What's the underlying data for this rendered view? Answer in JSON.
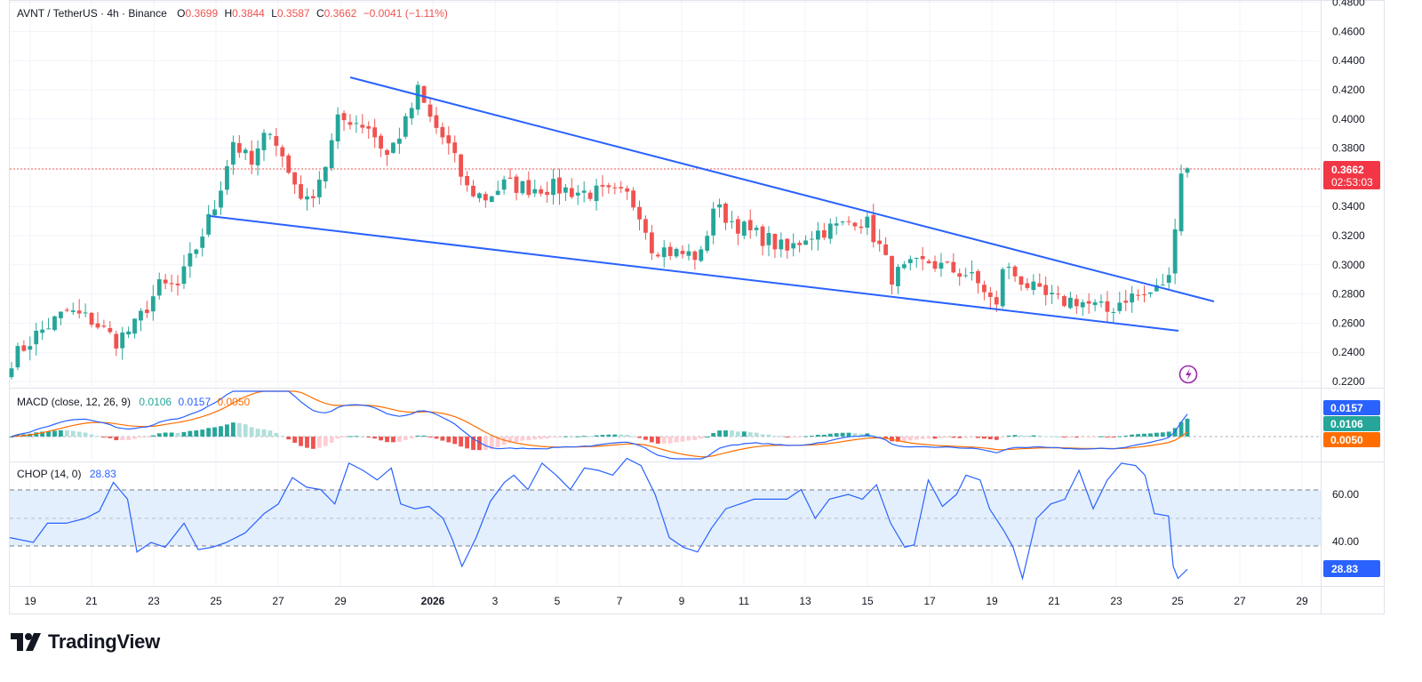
{
  "header": {
    "symbol": "AVNT / TetherUS · 4h · Binance",
    "o_label": "O",
    "o_value": "0.3699",
    "h_label": "H",
    "h_value": "0.3844",
    "l_label": "L",
    "l_value": "0.3587",
    "c_label": "C",
    "c_value": "0.3662",
    "change": "−0.0041 (−1.11%)"
  },
  "price_badge": {
    "price": "0.3662",
    "countdown": "02:53:03"
  },
  "macd": {
    "label": "MACD (close, 12, 26, 9)",
    "hist_value": "0.0106",
    "macd_value": "0.0157",
    "signal_value": "0.0050",
    "badges": [
      "0.0157",
      "0.0106",
      "0.0050"
    ]
  },
  "chop": {
    "label": "CHOP (14, 0)",
    "value": "28.83",
    "axis_labels": [
      "60.00",
      "40.00"
    ],
    "badge": "28.83"
  },
  "brand": {
    "name": "TradingView"
  },
  "colors": {
    "up": "#26a69a",
    "down": "#ef5350",
    "trend": "#2962ff",
    "macd": "#2962ff",
    "signal": "#ff6d00",
    "chop": "#2962ff",
    "chop_band": "#e3effd",
    "accent_bolt": "#9c27b0"
  },
  "icons": {
    "flash": "lightning-icon",
    "logo": "tradingview-logo-icon"
  },
  "chart_data": {
    "type": "candlestick",
    "price_axis": {
      "ticks": [
        "0.4800",
        "0.4600",
        "0.4400",
        "0.4200",
        "0.4000",
        "0.3800",
        "0.3400",
        "0.3200",
        "0.3000",
        "0.2800",
        "0.2600",
        "0.2400",
        "0.2200"
      ],
      "range": [
        0.22,
        0.48
      ]
    },
    "x_axis": {
      "ticks": [
        "19",
        "21",
        "23",
        "25",
        "27",
        "29",
        "2026",
        "3",
        "5",
        "7",
        "9",
        "11",
        "13",
        "15",
        "17",
        "19",
        "21",
        "23",
        "25",
        "27",
        "29"
      ],
      "unit": "day",
      "bold": "2026"
    },
    "last_price": 0.3662,
    "trendlines": [
      {
        "name": "upper",
        "start": [
          "Dec 30",
          0.429
        ],
        "end": [
          "Jan 26",
          0.2755
        ]
      },
      {
        "name": "lower",
        "start": [
          "Dec 25",
          0.3335
        ],
        "end": [
          "Jan 25",
          0.2555
        ]
      }
    ],
    "close_path": [
      [
        0,
        0.235
      ],
      [
        4,
        0.252
      ],
      [
        9,
        0.268
      ],
      [
        13,
        0.262
      ],
      [
        17,
        0.248
      ],
      [
        20,
        0.258
      ],
      [
        24,
        0.285
      ],
      [
        27,
        0.285
      ],
      [
        30,
        0.312
      ],
      [
        33,
        0.34
      ],
      [
        36,
        0.385
      ],
      [
        39,
        0.368
      ],
      [
        42,
        0.395
      ],
      [
        45,
        0.363
      ],
      [
        48,
        0.342
      ],
      [
        51,
        0.369
      ],
      [
        53,
        0.398
      ],
      [
        55,
        0.4
      ],
      [
        58,
        0.395
      ],
      [
        61,
        0.375
      ],
      [
        64,
        0.397
      ],
      [
        66,
        0.419
      ],
      [
        68,
        0.4
      ],
      [
        71,
        0.381
      ],
      [
        74,
        0.352
      ],
      [
        77,
        0.346
      ],
      [
        80,
        0.355
      ],
      [
        84,
        0.353
      ],
      [
        88,
        0.353
      ],
      [
        92,
        0.35
      ],
      [
        96,
        0.349
      ],
      [
        100,
        0.347
      ],
      [
        102,
        0.337
      ],
      [
        104,
        0.313
      ],
      [
        108,
        0.308
      ],
      [
        112,
        0.306
      ],
      [
        114,
        0.34
      ],
      [
        117,
        0.33
      ],
      [
        120,
        0.322
      ],
      [
        123,
        0.317
      ],
      [
        126,
        0.309
      ],
      [
        129,
        0.32
      ],
      [
        132,
        0.324
      ],
      [
        135,
        0.327
      ],
      [
        137,
        0.332
      ],
      [
        139,
        0.328
      ],
      [
        141,
        0.312
      ],
      [
        143,
        0.292
      ],
      [
        146,
        0.298
      ],
      [
        149,
        0.302
      ],
      [
        152,
        0.297
      ],
      [
        155,
        0.294
      ],
      [
        158,
        0.283
      ],
      [
        160,
        0.27
      ],
      [
        161,
        0.299
      ],
      [
        164,
        0.29
      ],
      [
        167,
        0.279
      ],
      [
        170,
        0.275
      ],
      [
        173,
        0.276
      ],
      [
        176,
        0.271
      ],
      [
        178,
        0.268
      ],
      [
        181,
        0.278
      ],
      [
        184,
        0.279
      ],
      [
        186,
        0.283
      ],
      [
        187,
        0.288
      ],
      [
        188,
        0.29
      ],
      [
        189,
        0.33
      ],
      [
        190,
        0.365
      ],
      [
        191,
        0.3662
      ]
    ],
    "macd_series": {
      "macd": [
        0.0157
      ],
      "signal": [
        0.005
      ],
      "histogram": [
        0.0106
      ]
    },
    "chop_range": [
      20,
      80
    ],
    "chop_levels": [
      61.8,
      50,
      38.2
    ],
    "chop_path": [
      [
        0,
        42
      ],
      [
        5,
        40
      ],
      [
        8,
        48
      ],
      [
        12,
        48
      ],
      [
        16,
        50
      ],
      [
        19,
        53
      ],
      [
        22,
        65
      ],
      [
        25,
        58
      ],
      [
        27,
        36
      ],
      [
        30,
        40
      ],
      [
        33,
        38
      ],
      [
        37,
        48
      ],
      [
        40,
        37
      ],
      [
        43,
        38
      ],
      [
        46,
        40
      ],
      [
        50,
        44
      ],
      [
        54,
        52
      ],
      [
        57,
        56
      ],
      [
        60,
        67
      ],
      [
        63,
        63
      ],
      [
        66,
        62
      ],
      [
        69,
        56
      ],
      [
        72,
        73
      ],
      [
        75,
        70
      ],
      [
        78,
        66
      ],
      [
        81,
        71
      ],
      [
        83,
        56
      ],
      [
        86,
        54
      ],
      [
        89,
        55
      ],
      [
        92,
        50
      ],
      [
        94,
        41
      ],
      [
        96,
        30
      ],
      [
        99,
        42
      ],
      [
        102,
        57
      ],
      [
        105,
        65
      ],
      [
        107,
        68
      ],
      [
        110,
        62
      ],
      [
        113,
        73
      ],
      [
        116,
        68
      ],
      [
        119,
        62
      ],
      [
        122,
        71
      ],
      [
        125,
        70
      ],
      [
        128,
        68
      ],
      [
        131,
        75
      ],
      [
        134,
        72
      ],
      [
        137,
        60
      ],
      [
        140,
        42
      ],
      [
        143,
        38
      ],
      [
        146,
        36
      ],
      [
        149,
        46
      ],
      [
        152,
        54
      ],
      [
        155,
        56
      ],
      [
        158,
        58
      ],
      [
        161,
        58
      ],
      [
        165,
        58
      ],
      [
        168,
        62
      ],
      [
        171,
        50
      ],
      [
        174,
        58
      ],
      [
        178,
        60
      ],
      [
        181,
        58
      ],
      [
        184,
        64
      ],
      [
        187,
        48
      ],
      [
        190,
        38
      ],
      [
        192,
        39
      ],
      [
        195,
        66
      ],
      [
        198,
        55
      ],
      [
        201,
        60
      ],
      [
        203,
        68
      ],
      [
        206,
        66
      ],
      [
        208,
        54
      ],
      [
        211,
        45
      ],
      [
        213,
        38
      ],
      [
        215,
        25
      ],
      [
        218,
        50
      ],
      [
        221,
        56
      ],
      [
        224,
        58
      ],
      [
        227,
        70
      ],
      [
        230,
        54
      ],
      [
        233,
        66
      ],
      [
        236,
        73
      ],
      [
        239,
        72
      ],
      [
        241,
        68
      ],
      [
        243,
        52
      ],
      [
        246,
        51
      ],
      [
        247,
        30
      ],
      [
        248,
        25
      ],
      [
        250,
        28.83
      ]
    ]
  }
}
